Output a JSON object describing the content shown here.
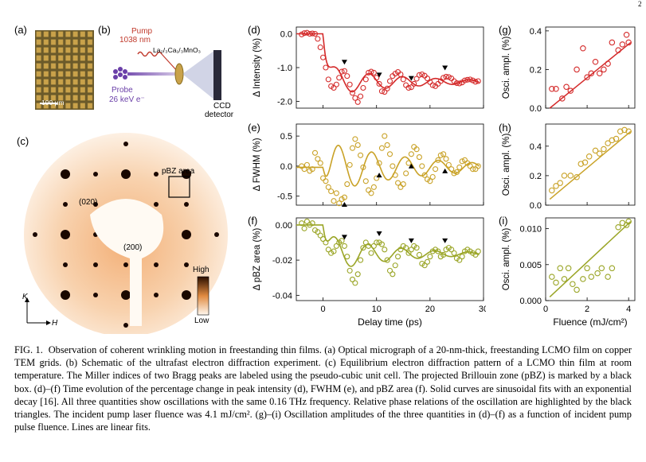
{
  "page_number": "2",
  "panels": {
    "a": {
      "label": "(a)",
      "scale_bar": "100 μm"
    },
    "b": {
      "label": "(b)",
      "pump_label": "Pump",
      "pump_wavelength": "1038 nm",
      "probe_label": "Probe",
      "probe_energy": "26 keV e⁻",
      "sample_formula": "La₂/₃Ca₁/₃MnO₃",
      "detector_line1": "CCD",
      "detector_line2": "detector"
    },
    "c": {
      "label": "(c)",
      "peak1": "(020)",
      "peak2": "(200)",
      "pbz_label": "pBZ area",
      "colorbar_high": "High",
      "colorbar_low": "Low",
      "axis_k": "K",
      "axis_h": "H"
    },
    "d": {
      "label": "(d)"
    },
    "e": {
      "label": "(e)"
    },
    "f": {
      "label": "(f)"
    },
    "g": {
      "label": "(g)"
    },
    "h": {
      "label": "(h)"
    },
    "i": {
      "label": "(i)"
    }
  },
  "colors": {
    "intensity": "#d42a2a",
    "fwhm": "#c9a227",
    "pbz": "#9aa526"
  },
  "chart_data": [
    {
      "id": "d",
      "type": "scatter",
      "ylabel": "Δ Intensity (%)",
      "xlim": [
        -5,
        30
      ],
      "ylim": [
        -2.2,
        0.2
      ],
      "yticks": [
        0.0,
        -1.0,
        -2.0
      ],
      "ytick_labels": [
        "0.0",
        "-1.0",
        "-2.0"
      ],
      "xticks": [
        0,
        10,
        20,
        30
      ],
      "triangles_at": [
        4,
        10.5,
        16.5,
        22.8
      ],
      "fit": {
        "base": -1.42,
        "amp": 0.44,
        "freq_thz": 0.16,
        "phase0": 3.9,
        "decay": 14,
        "t0": 0,
        "drop_tau": 0.8,
        "pre": 0.0
      },
      "points_x": [
        -4,
        -3.5,
        -3,
        -2.5,
        -2,
        -1.5,
        -1,
        -0.5,
        0,
        0.5,
        1,
        1.5,
        2,
        2.5,
        3,
        3.5,
        4,
        4.5,
        5,
        5.5,
        6,
        6.5,
        7,
        7.5,
        8,
        8.5,
        9,
        9.5,
        10,
        10.5,
        11,
        11.5,
        12,
        12.5,
        13,
        13.5,
        14,
        14.5,
        15,
        15.5,
        16,
        16.5,
        17,
        17.5,
        18,
        18.5,
        19,
        19.5,
        20,
        20.5,
        21,
        21.5,
        22,
        22.5,
        23,
        23.5,
        24,
        24.5,
        25,
        25.5,
        26,
        26.5,
        27,
        27.5,
        28,
        28.5,
        29
      ],
      "points_y": [
        -0.02,
        0.02,
        0.03,
        0.0,
        0.01,
        0.0,
        -0.15,
        -0.4,
        -0.7,
        -1.0,
        -1.35,
        -1.55,
        -1.6,
        -1.5,
        -1.3,
        -1.12,
        -1.1,
        -1.25,
        -1.5,
        -1.75,
        -1.9,
        -2.02,
        -1.85,
        -1.6,
        -1.35,
        -1.15,
        -1.12,
        -1.15,
        -1.3,
        -1.48,
        -1.7,
        -1.72,
        -1.62,
        -1.4,
        -1.25,
        -1.18,
        -1.13,
        -1.2,
        -1.35,
        -1.52,
        -1.6,
        -1.58,
        -1.48,
        -1.33,
        -1.22,
        -1.2,
        -1.24,
        -1.32,
        -1.43,
        -1.52,
        -1.55,
        -1.48,
        -1.4,
        -1.3,
        -1.27,
        -1.28,
        -1.32,
        -1.4,
        -1.46,
        -1.47,
        -1.44,
        -1.38,
        -1.36,
        -1.35,
        -1.38,
        -1.42,
        -1.4
      ]
    },
    {
      "id": "e",
      "type": "scatter",
      "ylabel": "Δ FWHM (%)",
      "xlim": [
        -5,
        30
      ],
      "ylim": [
        -0.65,
        0.7
      ],
      "yticks": [
        0.5,
        0.0,
        -0.5
      ],
      "ytick_labels": [
        "0.5",
        "0.0",
        "-0.5"
      ],
      "xticks": [
        0,
        10,
        20,
        30
      ],
      "triangles_at": [
        4,
        10.5,
        16.5,
        22.8
      ],
      "triangles_below": true,
      "fit": {
        "base": -0.02,
        "amp": 0.45,
        "freq_thz": 0.16,
        "phase0": 3.4,
        "decay": 16,
        "t0": 0,
        "drop_tau": 0.8,
        "pre": -0.02
      },
      "points_x": [
        -4,
        -3.5,
        -3,
        -2.5,
        -2,
        -1.5,
        -1,
        -0.5,
        0,
        0.5,
        1,
        1.5,
        2,
        2.5,
        3,
        3.5,
        4,
        4.5,
        5,
        5.5,
        6,
        6.5,
        7,
        7.5,
        8,
        8.5,
        9,
        9.5,
        10,
        10.5,
        11,
        11.5,
        12,
        12.5,
        13,
        13.5,
        14,
        14.5,
        15,
        15.5,
        16,
        16.5,
        17,
        17.5,
        18,
        18.5,
        19,
        19.5,
        20,
        20.5,
        21,
        21.5,
        22,
        22.5,
        23,
        23.5,
        24,
        24.5,
        25,
        25.5,
        26,
        26.5,
        27,
        27.5,
        28,
        28.5,
        29
      ],
      "points_y": [
        0.0,
        -0.05,
        0.02,
        -0.08,
        -0.05,
        0.22,
        0.12,
        0.05,
        -0.2,
        -0.25,
        -0.35,
        -0.42,
        -0.58,
        -0.45,
        -0.62,
        -0.55,
        -0.52,
        -0.3,
        0.02,
        0.3,
        0.45,
        0.35,
        0.18,
        -0.02,
        -0.25,
        -0.4,
        -0.45,
        -0.35,
        -0.2,
        0.05,
        0.3,
        0.5,
        0.35,
        0.2,
        0.0,
        -0.15,
        -0.28,
        -0.35,
        -0.3,
        -0.12,
        0.05,
        0.2,
        0.32,
        0.28,
        0.15,
        0.0,
        -0.15,
        -0.22,
        -0.25,
        -0.18,
        -0.05,
        0.1,
        0.18,
        0.2,
        0.12,
        0.02,
        -0.05,
        -0.12,
        -0.1,
        -0.02,
        0.08,
        0.1,
        0.05,
        0.0,
        -0.05,
        -0.05,
        0.0
      ]
    },
    {
      "id": "f",
      "type": "scatter",
      "ylabel": "Δ pBZ area (%)",
      "xlim": [
        -5,
        30
      ],
      "ylim": [
        -0.043,
        0.004
      ],
      "yticks": [
        0.0,
        -0.02,
        -0.04
      ],
      "ytick_labels": [
        "0.00",
        "-0.02",
        "-0.04"
      ],
      "xticks": [
        -10,
        0,
        10,
        20,
        30
      ],
      "xtick_labels": [
        "",
        "0",
        "10",
        "20",
        "30"
      ],
      "xlabel": "Delay time (ps)",
      "triangles_at": [
        4,
        10.5,
        16.5,
        22.8
      ],
      "fit": {
        "base": -0.0165,
        "amp": 0.011,
        "freq_thz": 0.16,
        "phase0": 4.1,
        "decay": 12,
        "t0": 0,
        "drop_tau": 0.8,
        "pre": 0.0
      },
      "points_x": [
        -4,
        -3.5,
        -3,
        -2.5,
        -2,
        -1.5,
        -1,
        -0.5,
        0,
        0.5,
        1,
        1.5,
        2,
        2.5,
        3,
        3.5,
        4,
        4.5,
        5,
        5.5,
        6,
        6.5,
        7,
        7.5,
        8,
        8.5,
        9,
        9.5,
        10,
        10.5,
        11,
        11.5,
        12,
        12.5,
        13,
        13.5,
        14,
        14.5,
        15,
        15.5,
        16,
        16.5,
        17,
        17.5,
        18,
        18.5,
        19,
        19.5,
        20,
        20.5,
        21,
        21.5,
        22,
        22.5,
        23,
        23.5,
        24,
        24.5,
        25,
        25.5,
        26,
        26.5,
        27,
        27.5,
        28,
        28.5,
        29
      ],
      "points_y": [
        0.001,
        -0.002,
        0.002,
        0.0,
        0.001,
        -0.003,
        -0.004,
        -0.006,
        -0.008,
        -0.01,
        -0.014,
        -0.016,
        -0.015,
        -0.012,
        -0.01,
        -0.009,
        -0.012,
        -0.018,
        -0.026,
        -0.031,
        -0.033,
        -0.028,
        -0.02,
        -0.013,
        -0.01,
        -0.012,
        -0.016,
        -0.012,
        -0.01,
        -0.01,
        -0.011,
        -0.014,
        -0.02,
        -0.026,
        -0.028,
        -0.023,
        -0.018,
        -0.014,
        -0.012,
        -0.013,
        -0.016,
        -0.014,
        -0.012,
        -0.013,
        -0.017,
        -0.022,
        -0.023,
        -0.021,
        -0.018,
        -0.015,
        -0.014,
        -0.015,
        -0.018,
        -0.017,
        -0.014,
        -0.013,
        -0.014,
        -0.016,
        -0.019,
        -0.02,
        -0.018,
        -0.015,
        -0.014,
        -0.015,
        -0.016,
        -0.017,
        -0.015
      ]
    },
    {
      "id": "g",
      "type": "scatter",
      "ylabel": "Osci. ampl. (%)",
      "xlim": [
        0,
        4.3
      ],
      "ylim": [
        0,
        0.42
      ],
      "yticks": [
        0.0,
        0.2,
        0.4
      ],
      "ytick_labels": [
        "0.0",
        "0.2",
        "0.4"
      ],
      "xticks": [
        0,
        2,
        4
      ],
      "fit_line": [
        [
          0.2,
          0.0
        ],
        [
          4.1,
          0.34
        ]
      ],
      "points_x": [
        0.3,
        0.5,
        0.8,
        1.0,
        1.2,
        1.5,
        1.8,
        2.0,
        2.2,
        2.4,
        2.6,
        2.8,
        3.0,
        3.2,
        3.5,
        3.7,
        3.9,
        4.0
      ],
      "points_y": [
        0.1,
        0.1,
        0.05,
        0.11,
        0.09,
        0.2,
        0.31,
        0.16,
        0.18,
        0.24,
        0.18,
        0.2,
        0.23,
        0.34,
        0.3,
        0.33,
        0.38,
        0.34
      ]
    },
    {
      "id": "h",
      "type": "scatter",
      "ylabel": "Osci. ampl. (%)",
      "xlim": [
        0,
        4.3
      ],
      "ylim": [
        0,
        0.55
      ],
      "yticks": [
        0.0,
        0.2,
        0.4
      ],
      "ytick_labels": [
        "0.0",
        "0.2",
        "0.4"
      ],
      "xticks": [
        0,
        2,
        4
      ],
      "fit_line": [
        [
          0.2,
          0.04
        ],
        [
          4.1,
          0.5
        ]
      ],
      "points_x": [
        0.3,
        0.5,
        0.7,
        0.9,
        1.2,
        1.5,
        1.7,
        1.9,
        2.1,
        2.4,
        2.6,
        2.8,
        3.0,
        3.2,
        3.4,
        3.6,
        3.8,
        4.0
      ],
      "points_y": [
        0.1,
        0.13,
        0.15,
        0.2,
        0.2,
        0.19,
        0.28,
        0.29,
        0.33,
        0.37,
        0.35,
        0.38,
        0.42,
        0.44,
        0.45,
        0.5,
        0.51,
        0.5
      ]
    },
    {
      "id": "i",
      "type": "scatter",
      "ylabel": "Osci. ampl. (%)",
      "xlabel": "Fluence (mJ/cm²)",
      "xlim": [
        0,
        4.3
      ],
      "ylim": [
        0,
        0.0115
      ],
      "yticks": [
        0.0,
        0.005,
        0.01
      ],
      "ytick_labels": [
        "0.000",
        "0.005",
        "0.010"
      ],
      "xticks": [
        0,
        2,
        4
      ],
      "fit_line": [
        [
          0.2,
          0.0005
        ],
        [
          4.1,
          0.011
        ]
      ],
      "points_x": [
        0.3,
        0.5,
        0.7,
        0.9,
        1.1,
        1.3,
        1.5,
        1.8,
        2.0,
        2.2,
        2.5,
        2.7,
        3.0,
        3.2,
        3.5,
        3.7,
        3.9,
        4.0
      ],
      "points_y": [
        0.0033,
        0.0025,
        0.0045,
        0.003,
        0.0045,
        0.0023,
        0.0015,
        0.003,
        0.0045,
        0.0033,
        0.0038,
        0.0045,
        0.0033,
        0.0045,
        0.0102,
        0.0108,
        0.0105,
        0.011
      ]
    }
  ],
  "caption": {
    "fig": "FIG. 1.",
    "text": "Observation of coherent wrinkling motion in freestanding thin films. (a) Optical micrograph of a 20-nm-thick, freestanding LCMO film on copper TEM grids. (b) Schematic of the ultrafast electron diffraction experiment. (c) Equilibrium electron diffraction pattern of a LCMO thin film at room temperature. The Miller indices of two Bragg peaks are labeled using the pseudo-cubic unit cell. The projected Brillouin zone (pBZ) is marked by a black box. (d)–(f) Time evolution of the percentage change in peak intensity (d), FWHM (e), and pBZ area (f). Solid curves are sinusoidal fits with an exponential decay [16]. All three quantities show oscillations with the same 0.16 THz frequency. Relative phase relations of the oscillation are highlighted by the black triangles. The incident pump laser fluence was 4.1 mJ/cm². (g)–(i) Oscillation amplitudes of the three quantities in (d)–(f) as a function of incident pump pulse fluence. Lines are linear fits."
  }
}
